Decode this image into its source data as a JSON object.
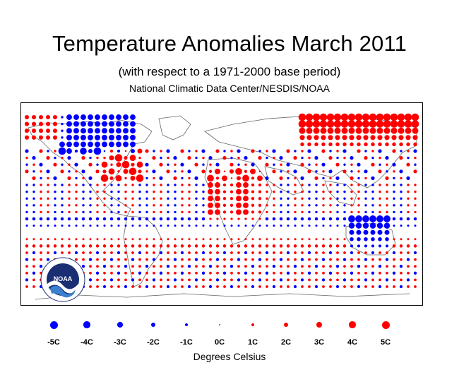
{
  "title": "Temperature Anomalies March 2011",
  "subtitle": "(with respect to a 1971-2000 base period)",
  "source": "National Climatic Data Center/NESDIS/NOAA",
  "logo_text": "NOAA",
  "colors": {
    "warm": "#ff0000",
    "cold": "#0000ff",
    "coast": "#666666"
  },
  "legend": {
    "items": [
      {
        "label": "-5C",
        "anomaly": -5
      },
      {
        "label": "-4C",
        "anomaly": -4
      },
      {
        "label": "-3C",
        "anomaly": -3
      },
      {
        "label": "-2C",
        "anomaly": -2
      },
      {
        "label": "-1C",
        "anomaly": -1
      },
      {
        "label": "0C",
        "anomaly": 0
      },
      {
        "label": "1C",
        "anomaly": 1
      },
      {
        "label": "2C",
        "anomaly": 2
      },
      {
        "label": "3C",
        "anomaly": 3
      },
      {
        "label": "4C",
        "anomaly": 4
      },
      {
        "label": "5C",
        "anomaly": 5
      }
    ],
    "units": "Degrees Celsius"
  },
  "anomaly_regions": [
    {
      "region": "Northeast Siberia / Arctic Russia",
      "anomaly": 4.5
    },
    {
      "region": "Northern Canada / Arctic Archipelago",
      "anomaly": -4
    },
    {
      "region": "Alaska",
      "anomaly": 3
    },
    {
      "region": "South-central United States",
      "anomaly": 3
    },
    {
      "region": "North Africa / Sahara",
      "anomaly": 3
    },
    {
      "region": "Southern Africa",
      "anomaly": 2
    },
    {
      "region": "Western Australia",
      "anomaly": -3
    },
    {
      "region": "Southern South America",
      "anomaly": -2
    },
    {
      "region": "Tropical Pacific",
      "anomaly": -1
    },
    {
      "region": "Central Asia",
      "anomaly": -2
    }
  ]
}
